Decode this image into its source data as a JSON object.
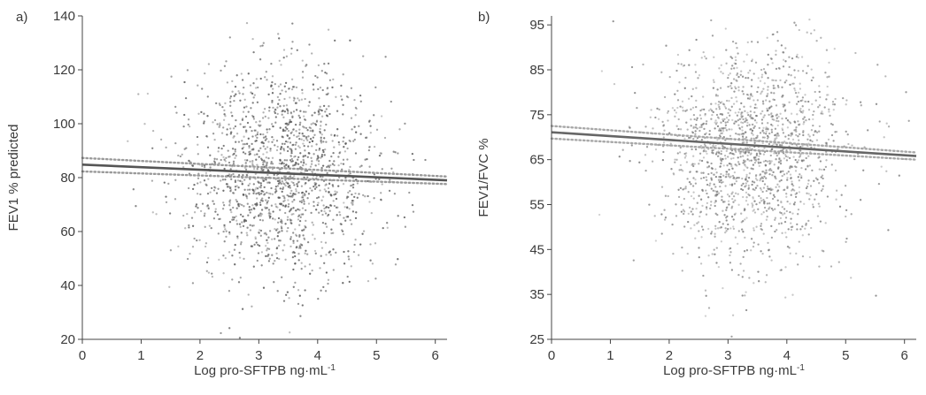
{
  "chart_data": [
    {
      "type": "scatter",
      "panel_label": "a)",
      "xlabel": "Log pro-SFTPB ng·mL",
      "xlabel_superscript": "-1",
      "ylabel": "FEV1 % predicted",
      "xlim": [
        0,
        6.2
      ],
      "ylim": [
        20,
        140
      ],
      "xticks": [
        "0",
        "1",
        "2",
        "3",
        "4",
        "5",
        "6"
      ],
      "yticks": [
        "20",
        "40",
        "60",
        "80",
        "100",
        "120",
        "140"
      ],
      "point_cloud": {
        "n": 1600,
        "x_mean": 3.4,
        "x_sd": 0.8,
        "y_mean": 82,
        "y_sd": 20,
        "color": "#555555"
      },
      "regression": {
        "x": [
          0,
          6.2
        ],
        "y": [
          84.8,
          79.0
        ],
        "color": "#555555"
      },
      "ci_band": {
        "lower": [
          82.3,
          77.6
        ],
        "upper": [
          87.3,
          80.4
        ],
        "color": "#9a9a9a"
      }
    },
    {
      "type": "scatter",
      "panel_label": "b)",
      "xlabel": "Log pro-SFTPB ng·mL",
      "xlabel_superscript": "-1",
      "ylabel": "FEV1/FVC %",
      "xlim": [
        0,
        6.2
      ],
      "ylim": [
        25,
        97
      ],
      "xticks": [
        "0",
        "1",
        "2",
        "3",
        "4",
        "5",
        "6"
      ],
      "yticks": [
        "25",
        "35",
        "45",
        "55",
        "65",
        "75",
        "85",
        "95"
      ],
      "point_cloud": {
        "n": 1600,
        "x_mean": 3.4,
        "x_sd": 0.8,
        "y_mean": 67,
        "y_sd": 12,
        "color": "#7a7a7a"
      },
      "regression": {
        "x": [
          0,
          6.2
        ],
        "y": [
          71.1,
          65.8
        ],
        "color": "#666666"
      },
      "ci_band": {
        "lower": [
          69.7,
          65.0
        ],
        "upper": [
          72.5,
          66.6
        ],
        "color": "#a8a8a8"
      }
    }
  ]
}
